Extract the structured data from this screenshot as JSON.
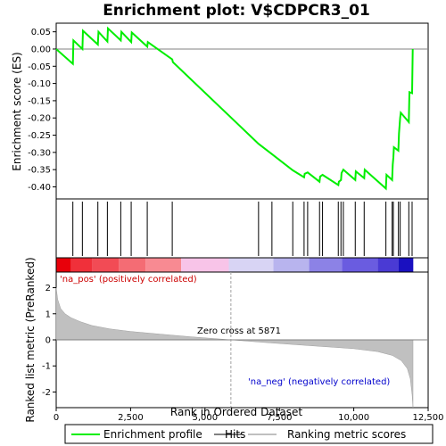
{
  "chart_data": {
    "type": "line",
    "title": "Enrichment plot: V$CDPCR3_01",
    "top_panel": {
      "ylabel": "Enrichment score (ES)",
      "ylim": [
        -0.435,
        0.075
      ],
      "yticks": [
        0.05,
        0.0,
        -0.05,
        -0.1,
        -0.15,
        -0.2,
        -0.25,
        -0.3,
        -0.35,
        -0.4
      ],
      "ytick_labels": [
        "0.05",
        "0.00",
        "-0.05",
        "-0.10",
        "-0.15",
        "-0.20",
        "-0.25",
        "-0.30",
        "-0.35",
        "-0.40"
      ],
      "series": [
        {
          "name": "Enrichment profile",
          "color": "#00ee00",
          "x": [
            0,
            560,
            580,
            880,
            900,
            1400,
            1420,
            1720,
            1740,
            2170,
            2190,
            2520,
            2540,
            3060,
            3080,
            3900,
            3920,
            6800,
            7250,
            7950,
            8330,
            8350,
            8450,
            8850,
            8870,
            8950,
            9480,
            9500,
            9570,
            9590,
            9650,
            10050,
            10070,
            10350,
            10370,
            11080,
            11100,
            11290,
            11310,
            11330,
            11350,
            11500,
            11520,
            11560,
            11580,
            11850,
            11870,
            11960,
            11980
          ],
          "y": [
            0.0,
            -0.043,
            0.025,
            0.0,
            0.053,
            0.013,
            0.05,
            0.022,
            0.06,
            0.025,
            0.05,
            0.02,
            0.048,
            0.007,
            0.02,
            -0.03,
            -0.038,
            -0.275,
            -0.305,
            -0.352,
            -0.372,
            -0.362,
            -0.358,
            -0.385,
            -0.37,
            -0.365,
            -0.395,
            -0.385,
            -0.38,
            -0.36,
            -0.35,
            -0.38,
            -0.355,
            -0.375,
            -0.35,
            -0.405,
            -0.365,
            -0.38,
            -0.335,
            -0.315,
            -0.285,
            -0.295,
            -0.245,
            -0.2,
            -0.185,
            -0.212,
            -0.125,
            -0.128,
            0.0
          ]
        }
      ]
    },
    "hits": [
      560,
      880,
      1400,
      1720,
      2170,
      2520,
      3060,
      3900,
      6800,
      7250,
      7950,
      8330,
      8450,
      8850,
      8950,
      9480,
      9570,
      9650,
      10050,
      10350,
      11080,
      11290,
      11330,
      11500,
      11560,
      11850,
      11960
    ],
    "bottom_panel": {
      "ylabel": "Ranked list metric (PreRanked)",
      "ylim": [
        -2.6,
        2.6
      ],
      "yticks": [
        2,
        1,
        0,
        -1,
        -2
      ],
      "ytick_labels": [
        "2",
        "1",
        "0",
        "-1",
        "-2"
      ],
      "metric_x": [
        0,
        50,
        150,
        300,
        500,
        800,
        1200,
        1800,
        2500,
        3500,
        4500,
        5871,
        7000,
        8000,
        9000,
        10000,
        10800,
        11300,
        11600,
        11800,
        11900,
        11960,
        11990
      ],
      "metric_y": [
        2.0,
        1.55,
        1.2,
        1.0,
        0.85,
        0.7,
        0.55,
        0.42,
        0.32,
        0.22,
        0.12,
        0.0,
        -0.1,
        -0.18,
        -0.26,
        -0.34,
        -0.45,
        -0.6,
        -0.8,
        -1.1,
        -1.5,
        -2.1,
        -2.6
      ],
      "fill_color": "#c0c0c0"
    },
    "xlabel": "Rank in Ordered Dataset",
    "xlim": [
      0,
      12500
    ],
    "xticks": [
      0,
      2500,
      5000,
      7500,
      10000,
      12500
    ],
    "xtick_labels": [
      "0",
      "2,500",
      "5,000",
      "7,500",
      "10,000",
      "12,500"
    ],
    "zero_cross_label": "Zero cross at 5871",
    "zero_cross_x": 5871,
    "pos_label": "'na_pos' (positively correlated)",
    "neg_label": "'na_neg' (negatively correlated)",
    "pos_color": "#cc0000",
    "neg_color": "#0000cc",
    "heat_segments": [
      {
        "x0": 0,
        "x1": 500,
        "color": "#e8000a"
      },
      {
        "x0": 500,
        "x1": 1200,
        "color": "#f0303a"
      },
      {
        "x0": 1200,
        "x1": 2100,
        "color": "#f24b55"
      },
      {
        "x0": 2100,
        "x1": 3000,
        "color": "#f46c74"
      },
      {
        "x0": 3000,
        "x1": 4200,
        "color": "#f88a92"
      },
      {
        "x0": 4200,
        "x1": 5800,
        "color": "#f8c4e8"
      },
      {
        "x0": 5800,
        "x1": 7300,
        "color": "#d8d4f4"
      },
      {
        "x0": 7300,
        "x1": 8500,
        "color": "#b8b4ee"
      },
      {
        "x0": 8500,
        "x1": 9600,
        "color": "#8c82e6"
      },
      {
        "x0": 9600,
        "x1": 10800,
        "color": "#6a5ce0"
      },
      {
        "x0": 10800,
        "x1": 11500,
        "color": "#4a3ad4"
      },
      {
        "x0": 11500,
        "x1": 12000,
        "color": "#1a10c0"
      }
    ],
    "legend": [
      {
        "label": "Enrichment profile",
        "color": "#00ee00"
      },
      {
        "label": "Hits",
        "color": "#000000"
      },
      {
        "label": "Ranking metric scores",
        "color": "#c0c0c0"
      }
    ]
  }
}
